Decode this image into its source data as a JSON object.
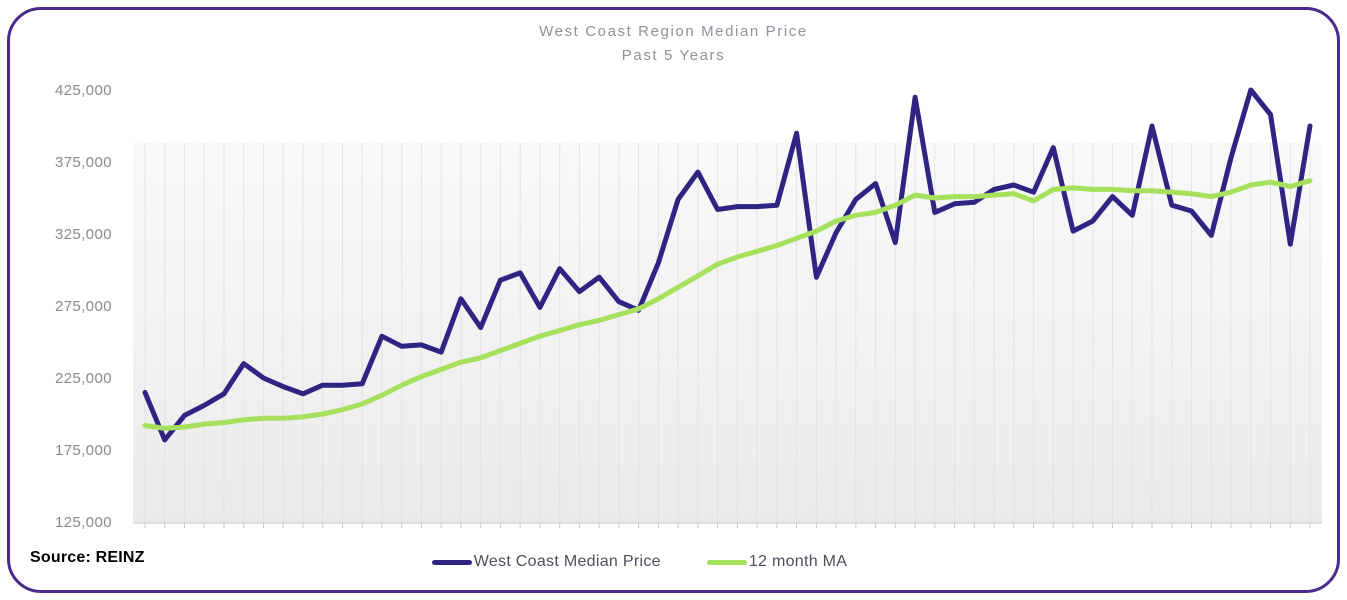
{
  "frame": {
    "border_color": "#4a2b8c"
  },
  "source_label": "Source: REINZ",
  "chart_data": {
    "type": "line",
    "title": "West Coast Region Median Price",
    "subtitle": "Past 5 Years",
    "xlabel": "",
    "ylabel": "",
    "x_description": "60 monthly observations spanning the past 5 years (no x-axis tick labels shown)",
    "ylim": [
      125000,
      425000
    ],
    "y_ticks": [
      425000,
      375000,
      325000,
      275000,
      225000,
      175000,
      125000
    ],
    "y_tick_labels": [
      "425,000",
      "375,000",
      "325,000",
      "275,000",
      "225,000",
      "175,000",
      "125,000"
    ],
    "grid": "vertical",
    "legend_position": "bottom-center",
    "plot_background": {
      "top": "#f9f9f9",
      "bottom": "#ebebeb"
    },
    "gridline_color": "#e3e3e3",
    "axis_line_color": "#cfcfcf",
    "series": [
      {
        "name": "West Coast Median Price",
        "color": "#2e2583",
        "values": [
          215000,
          182000,
          199000,
          206000,
          214000,
          235000,
          225000,
          219000,
          214000,
          220000,
          220000,
          221000,
          254000,
          247000,
          248000,
          243000,
          280000,
          260000,
          293000,
          298000,
          274000,
          301000,
          285000,
          295000,
          278000,
          272000,
          305000,
          349000,
          368000,
          342000,
          344000,
          344000,
          345000,
          395000,
          295000,
          326000,
          349000,
          360000,
          319000,
          420000,
          340000,
          346000,
          347000,
          356000,
          359000,
          354000,
          385000,
          327000,
          334000,
          351000,
          338000,
          400000,
          345000,
          341000,
          324000,
          378000,
          425000,
          408000,
          318000,
          400000
        ]
      },
      {
        "name": "12 month MA",
        "color": "#a6e05c",
        "values": [
          192000,
          190000,
          191000,
          193000,
          194000,
          196000,
          197000,
          197000,
          198000,
          200000,
          203000,
          207000,
          213000,
          220000,
          226000,
          231000,
          236000,
          239000,
          244000,
          249000,
          254000,
          258000,
          262000,
          265000,
          269000,
          273000,
          280000,
          288000,
          296000,
          304000,
          309000,
          313000,
          317000,
          322000,
          327000,
          334000,
          338000,
          340000,
          345000,
          352000,
          350000,
          351000,
          351000,
          352000,
          353000,
          348000,
          356000,
          357000,
          356000,
          356000,
          355000,
          355000,
          354000,
          353000,
          351000,
          354000,
          359000,
          361000,
          358000,
          362000
        ]
      }
    ]
  }
}
